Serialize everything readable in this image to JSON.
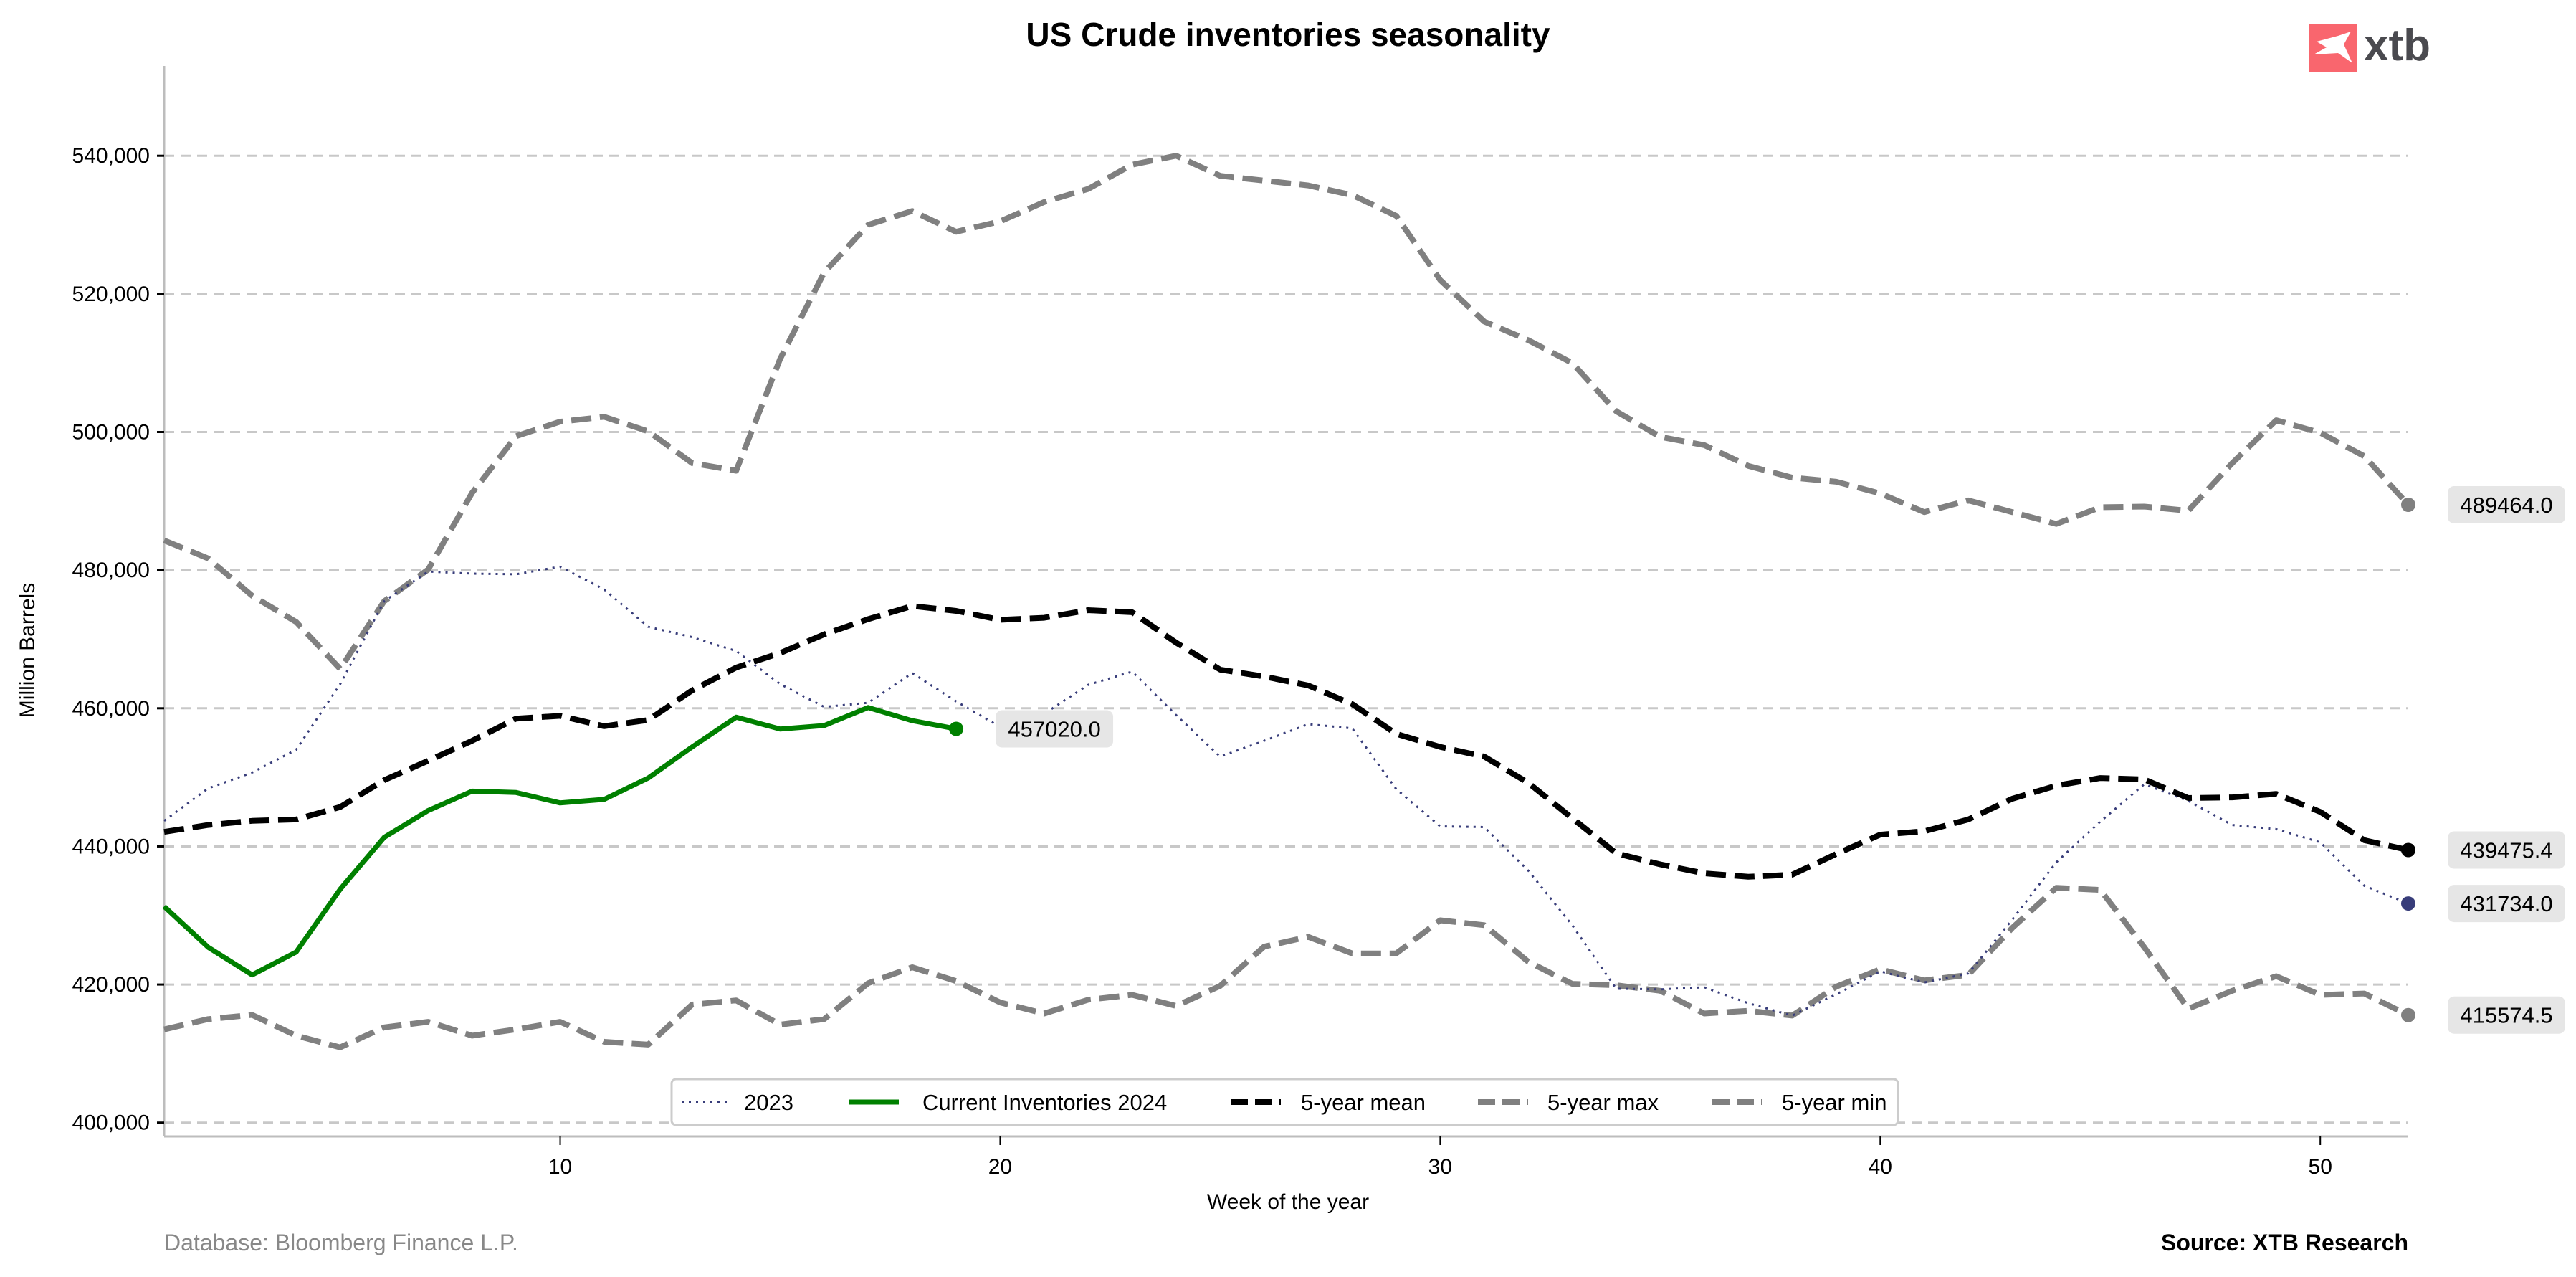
{
  "logo": {
    "text": "xtb",
    "color": "#f9666e",
    "icon": "xtb-x-mark-icon"
  },
  "footer": {
    "database": "Database: Bloomberg Finance L.P.",
    "source": "Source: XTB Research"
  },
  "chart_data": {
    "type": "line",
    "title": "US Crude inventories seasonality",
    "xlabel": "Week of the year",
    "ylabel": "Million Barrels",
    "xlim": [
      1,
      52
    ],
    "ylim": [
      398000,
      553000
    ],
    "xticks": [
      10,
      20,
      30,
      40,
      50
    ],
    "yticks": [
      400000,
      420000,
      440000,
      460000,
      480000,
      500000,
      520000,
      540000
    ],
    "ytick_labels": [
      "400,000",
      "420,000",
      "440,000",
      "460,000",
      "480,000",
      "500,000",
      "520,000",
      "540,000"
    ],
    "grid": "horizontal-dashed",
    "legend_position": "bottom-center",
    "series": [
      {
        "name": "2023",
        "color": "#383d7a",
        "style": "dotted",
        "x": [
          1,
          2,
          3,
          4,
          5,
          6,
          7,
          8,
          9,
          10,
          11,
          12,
          13,
          14,
          15,
          16,
          17,
          18,
          19,
          20,
          21,
          22,
          23,
          24,
          25,
          26,
          27,
          28,
          29,
          30,
          31,
          32,
          33,
          34,
          35,
          36,
          37,
          38,
          39,
          40,
          41,
          42,
          43,
          44,
          45,
          46,
          47,
          48,
          49,
          50,
          51,
          52
        ],
        "values": [
          443700,
          448400,
          450700,
          454000,
          463500,
          475500,
          479800,
          479500,
          479400,
          480500,
          477200,
          471800,
          470300,
          468300,
          463500,
          460200,
          460800,
          465100,
          461000,
          457300,
          459200,
          463400,
          465300,
          459000,
          453000,
          455300,
          457700,
          457100,
          448300,
          442900,
          442800,
          436500,
          428600,
          419400,
          419300,
          419600,
          417300,
          415500,
          418600,
          421900,
          420300,
          421600,
          429400,
          437700,
          443600,
          449000,
          446600,
          443100,
          442500,
          440600,
          434300,
          431734
        ]
      },
      {
        "name": "Current Inventories 2024",
        "color": "#008000",
        "style": "solid",
        "x": [
          1,
          2,
          3,
          4,
          5,
          6,
          7,
          8,
          9,
          10,
          11,
          12,
          13,
          14,
          15,
          16,
          17,
          18,
          19
        ],
        "values": [
          431300,
          425400,
          421400,
          424700,
          433800,
          441300,
          445200,
          448000,
          447800,
          446300,
          446800,
          449900,
          454400,
          458700,
          457000,
          457500,
          460100,
          458200,
          457020
        ]
      },
      {
        "name": "5-year mean",
        "color": "#000000",
        "style": "dashed",
        "x": [
          1,
          2,
          3,
          4,
          5,
          6,
          7,
          8,
          9,
          10,
          11,
          12,
          13,
          14,
          15,
          16,
          17,
          18,
          19,
          20,
          21,
          22,
          23,
          24,
          25,
          26,
          27,
          28,
          29,
          30,
          31,
          32,
          33,
          34,
          35,
          36,
          37,
          38,
          39,
          40,
          41,
          42,
          43,
          44,
          45,
          46,
          47,
          48,
          49,
          50,
          51,
          52
        ],
        "values": [
          442100,
          443100,
          443700,
          443900,
          445700,
          449600,
          452400,
          455300,
          458500,
          458900,
          457400,
          458300,
          462600,
          465900,
          468000,
          470700,
          472900,
          474800,
          474100,
          472800,
          473100,
          474200,
          473900,
          469500,
          465600,
          464600,
          463300,
          460600,
          456300,
          454400,
          453000,
          449200,
          444100,
          439000,
          437400,
          436100,
          435600,
          435900,
          438900,
          441700,
          442200,
          443900,
          446900,
          448800,
          449900,
          449700,
          447000,
          447100,
          447600,
          445000,
          440900,
          439475.4
        ]
      },
      {
        "name": "5-year max",
        "color": "#808080",
        "style": "dashed",
        "x": [
          1,
          2,
          3,
          4,
          5,
          6,
          7,
          8,
          9,
          10,
          11,
          12,
          13,
          14,
          15,
          16,
          17,
          18,
          19,
          20,
          21,
          22,
          23,
          24,
          25,
          26,
          27,
          28,
          29,
          30,
          31,
          32,
          33,
          34,
          35,
          36,
          37,
          38,
          39,
          40,
          41,
          42,
          43,
          44,
          45,
          46,
          47,
          48,
          49,
          50,
          51,
          52
        ],
        "values": [
          484300,
          481700,
          476300,
          472500,
          465700,
          475500,
          480100,
          491200,
          499400,
          501500,
          502200,
          500100,
          495500,
          494400,
          510600,
          523100,
          530000,
          532000,
          529000,
          530500,
          533300,
          535200,
          538700,
          540000,
          537100,
          536400,
          535700,
          534300,
          531300,
          522000,
          516000,
          513300,
          510000,
          503000,
          499300,
          498100,
          495100,
          493400,
          492800,
          491100,
          488400,
          490100,
          488400,
          486700,
          489100,
          489200,
          488600,
          495500,
          501700,
          499900,
          496500,
          489464
        ]
      },
      {
        "name": "5-year min",
        "color": "#808080",
        "style": "dashed",
        "x": [
          1,
          2,
          3,
          4,
          5,
          6,
          7,
          8,
          9,
          10,
          11,
          12,
          13,
          14,
          15,
          16,
          17,
          18,
          19,
          20,
          21,
          22,
          23,
          24,
          25,
          26,
          27,
          28,
          29,
          30,
          31,
          32,
          33,
          34,
          35,
          36,
          37,
          38,
          39,
          40,
          41,
          42,
          43,
          44,
          45,
          46,
          47,
          48,
          49,
          50,
          51,
          52
        ],
        "values": [
          413500,
          415000,
          415600,
          412600,
          410900,
          413800,
          414600,
          412600,
          413500,
          414600,
          411700,
          411300,
          417100,
          417700,
          414200,
          415000,
          420200,
          422500,
          420500,
          417400,
          415800,
          417800,
          418500,
          416900,
          419800,
          425500,
          426900,
          424500,
          424500,
          429300,
          428600,
          423300,
          420100,
          419900,
          419100,
          415800,
          416200,
          415500,
          419700,
          422200,
          420600,
          421400,
          428200,
          434000,
          433700,
          425400,
          416500,
          419100,
          421200,
          418500,
          418700,
          415574.5
        ]
      }
    ],
    "end_labels": [
      {
        "series": "Current Inventories 2024",
        "text": "457020.0"
      },
      {
        "series": "5-year max",
        "text": "489464.0"
      },
      {
        "series": "5-year mean",
        "text": "439475.4"
      },
      {
        "series": "2023",
        "text": "431734.0"
      },
      {
        "series": "5-year min",
        "text": "415574.5"
      }
    ],
    "end_marker_colors": {
      "2023": "#383d7a",
      "Current Inventories 2024": "#008000",
      "5-year mean": "#000000",
      "5-year max": "#808080",
      "5-year min": "#808080"
    }
  }
}
